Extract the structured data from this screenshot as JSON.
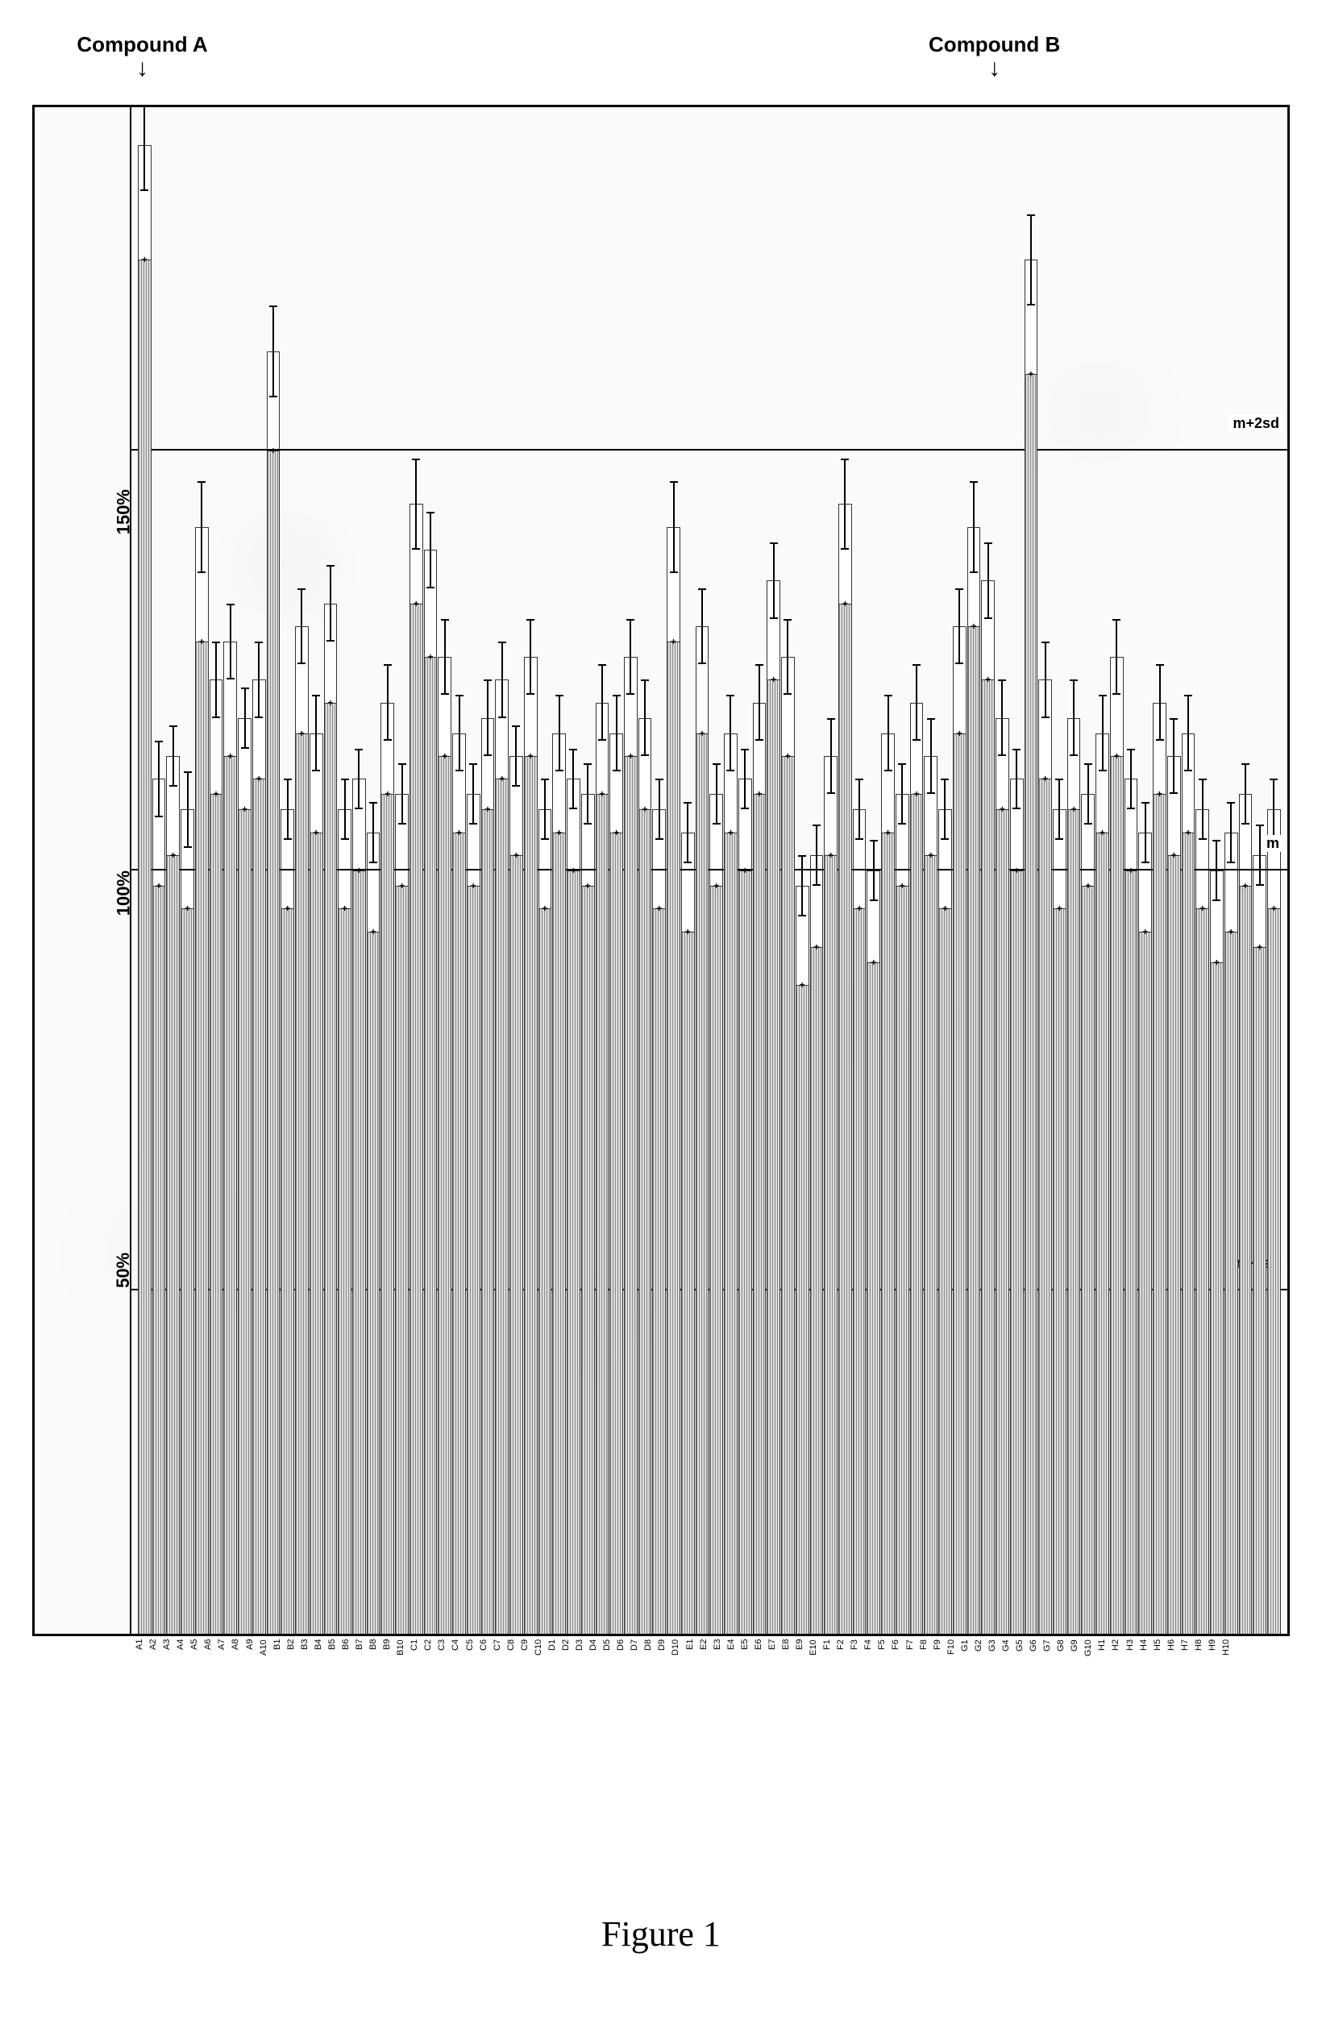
{
  "figure": {
    "caption": "Figure 1",
    "compoundA_label": "Compound A",
    "compoundB_label": "Compound B",
    "compoundA_index": 0,
    "compoundB_index": 62,
    "chart": {
      "type": "bar",
      "y_max": 200,
      "y_min": 0,
      "y_ticks": [
        50,
        100,
        150
      ],
      "y_tick_labels": [
        "50%",
        "100%",
        "150%"
      ],
      "ref_lines": {
        "m": 100,
        "m_plus_2sd": 155,
        "m_minus_2sd": 45,
        "m_label": "m",
        "m_plus_label": "m+2sd",
        "m_minus_label": "m−2sd"
      },
      "bar_border": "#333333",
      "fill_pattern_color": "#888888",
      "fill_bg": "#dddddd",
      "top_fill": "#ffffff",
      "background": "#fafafa",
      "categories": [
        "A1",
        "A2",
        "A3",
        "A4",
        "A5",
        "A6",
        "A7",
        "A8",
        "A9",
        "A10",
        "B1",
        "B2",
        "B3",
        "B4",
        "B5",
        "B6",
        "B7",
        "B8",
        "B9",
        "B10",
        "C1",
        "C2",
        "C3",
        "C4",
        "C5",
        "C6",
        "C7",
        "C8",
        "C9",
        "C10",
        "D1",
        "D2",
        "D3",
        "D4",
        "D5",
        "D6",
        "D7",
        "D8",
        "D9",
        "D10",
        "E1",
        "E2",
        "E3",
        "E4",
        "E5",
        "E6",
        "E7",
        "E8",
        "E9",
        "E10",
        "F1",
        "F2",
        "F3",
        "F4",
        "F5",
        "F6",
        "F7",
        "F8",
        "F9",
        "F10",
        "G1",
        "G2",
        "G3",
        "G4",
        "G5",
        "G6",
        "G7",
        "G8",
        "G9",
        "G10",
        "H1",
        "H2",
        "H3",
        "H4",
        "H5",
        "H6",
        "H7",
        "H8",
        "H9",
        "H10"
      ],
      "values_lower": [
        180,
        98,
        102,
        95,
        130,
        110,
        115,
        108,
        112,
        155,
        95,
        118,
        105,
        122,
        95,
        100,
        92,
        110,
        98,
        135,
        128,
        115,
        105,
        98,
        108,
        112,
        102,
        115,
        95,
        105,
        100,
        98,
        110,
        105,
        115,
        108,
        95,
        130,
        92,
        118,
        98,
        105,
        100,
        110,
        125,
        115,
        85,
        90,
        102,
        135,
        95,
        88,
        105,
        98,
        110,
        102,
        95,
        118,
        132,
        125,
        108,
        100,
        165,
        112,
        95,
        108,
        98,
        105,
        115,
        100,
        92,
        110,
        102,
        105,
        95,
        88,
        92,
        98,
        90,
        95
      ],
      "values_upper": [
        195,
        112,
        115,
        108,
        145,
        125,
        130,
        120,
        125,
        168,
        108,
        132,
        118,
        135,
        108,
        112,
        105,
        122,
        110,
        148,
        142,
        128,
        118,
        110,
        120,
        125,
        115,
        128,
        108,
        118,
        112,
        110,
        122,
        118,
        128,
        120,
        108,
        145,
        105,
        132,
        110,
        118,
        112,
        122,
        138,
        128,
        98,
        102,
        115,
        148,
        108,
        100,
        118,
        110,
        122,
        115,
        108,
        132,
        145,
        138,
        120,
        112,
        180,
        125,
        108,
        120,
        110,
        118,
        128,
        112,
        105,
        122,
        115,
        118,
        108,
        100,
        105,
        110,
        102,
        108
      ],
      "errors": [
        6,
        5,
        4,
        5,
        6,
        5,
        5,
        4,
        5,
        6,
        4,
        5,
        5,
        5,
        4,
        4,
        4,
        5,
        4,
        6,
        5,
        5,
        5,
        4,
        5,
        5,
        4,
        5,
        4,
        5,
        4,
        4,
        5,
        5,
        5,
        5,
        4,
        6,
        4,
        5,
        4,
        5,
        4,
        5,
        5,
        5,
        4,
        4,
        5,
        6,
        4,
        4,
        5,
        4,
        5,
        5,
        4,
        5,
        6,
        5,
        5,
        4,
        6,
        5,
        4,
        5,
        4,
        5,
        5,
        4,
        4,
        5,
        5,
        5,
        4,
        4,
        4,
        4,
        4,
        4
      ],
      "low_markers": [
        0,
        10,
        19,
        29,
        39,
        49,
        59,
        69
      ],
      "low_marker_glyph": "◇"
    }
  }
}
